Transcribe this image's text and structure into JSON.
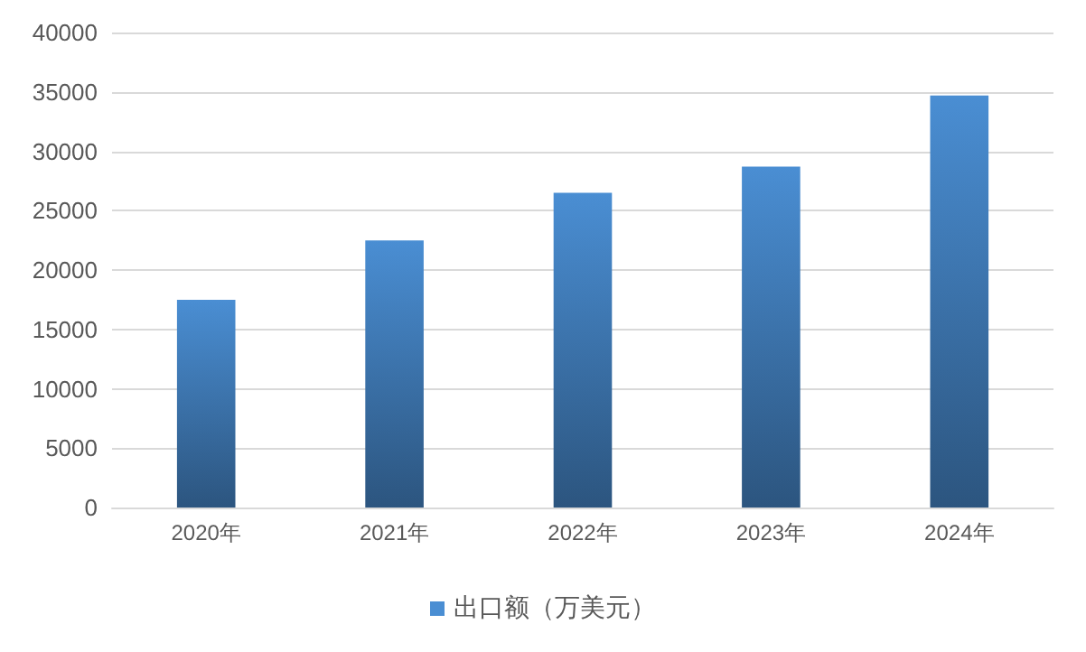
{
  "chart_data": {
    "type": "bar",
    "categories": [
      "2020年",
      "2021年",
      "2022年",
      "2023年",
      "2024年"
    ],
    "series": [
      {
        "name": "出口额（万美元）",
        "color": "#4a8ed3",
        "values": [
          17500,
          22500,
          26500,
          28700,
          34700
        ]
      }
    ],
    "ylim": [
      0,
      40000
    ],
    "yticks": [
      0,
      5000,
      10000,
      15000,
      20000,
      25000,
      30000,
      35000,
      40000
    ],
    "grid": "y",
    "legend": "bottom"
  }
}
